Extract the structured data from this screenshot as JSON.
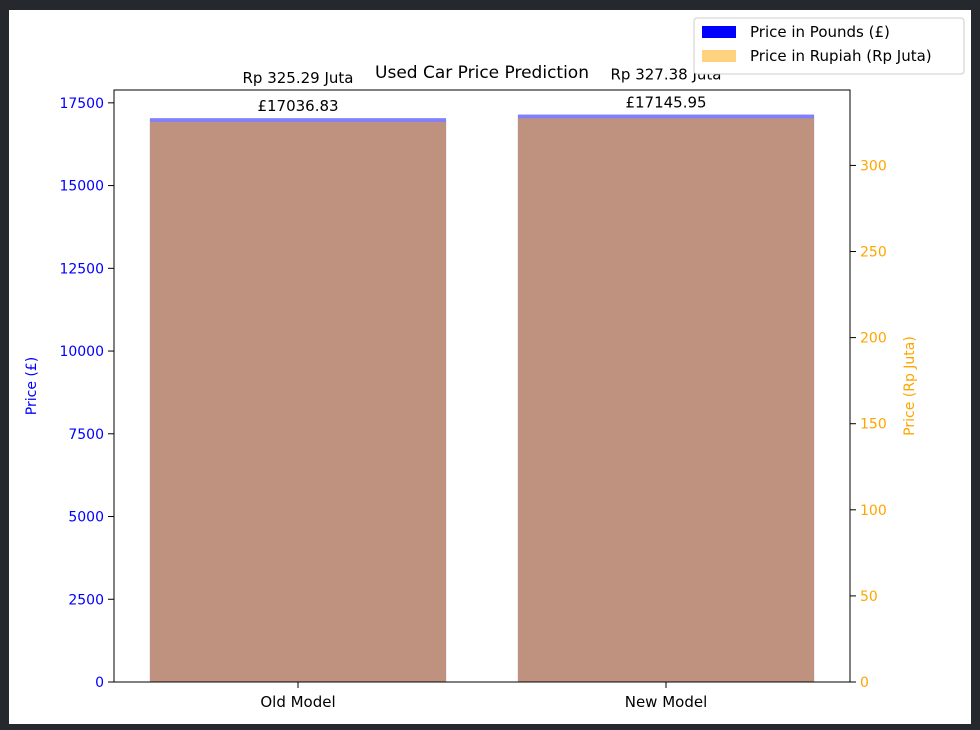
{
  "chart_data": {
    "type": "bar",
    "title": "Used Car Price Prediction",
    "categories": [
      "Old Model",
      "New Model"
    ],
    "ylabel_left": "Price (£)",
    "ylabel_right": "Price (Rp Juta)",
    "ylim_left": [
      0,
      17888
    ],
    "ylim_right": [
      0,
      343.8
    ],
    "yticks_left": [
      0,
      2500,
      5000,
      7500,
      10000,
      12500,
      15000,
      17500
    ],
    "yticks_right": [
      0,
      50,
      100,
      150,
      200,
      250,
      300
    ],
    "series": [
      {
        "name": "Price in Pounds (£)",
        "axis": "left",
        "color": "#0000ff",
        "alpha": 0.5,
        "values": [
          17036.83,
          17145.95
        ],
        "labels": [
          "£17036.83",
          "£17145.95"
        ]
      },
      {
        "name": "Price in Rupiah (Rp Juta)",
        "axis": "right",
        "color": "#ffa500",
        "alpha": 0.5,
        "values": [
          325.29,
          327.38
        ],
        "labels": [
          "Rp 325.29 Juta",
          "Rp 327.38 Juta"
        ]
      }
    ],
    "legend_position": "top-right",
    "colors": {
      "left_axis": "#0000ff",
      "right_axis": "#ffa500",
      "text": "#000000"
    }
  }
}
